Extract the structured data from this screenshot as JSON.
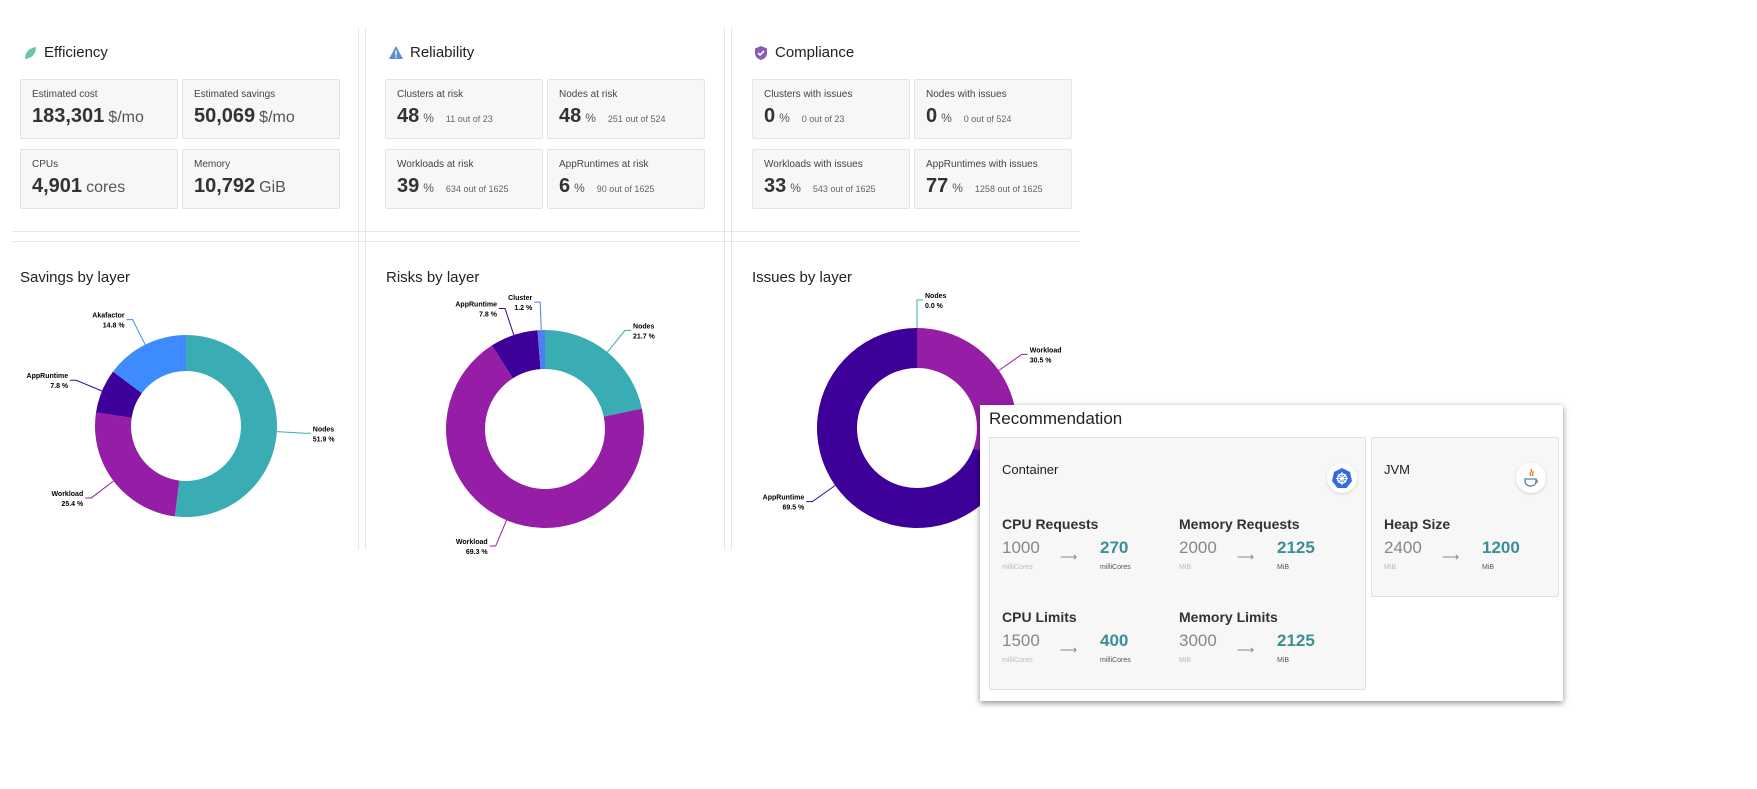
{
  "colors": {
    "nodes": "#3aacb3",
    "workload": "#961ea6",
    "appruntime": "#3d0099",
    "akafactor": "#3d8bff",
    "cluster": "#4e7ef5",
    "accent": "#3a8f97"
  },
  "efficiency": {
    "title": "Efficiency",
    "icon": "leaf-icon",
    "cards": [
      {
        "label": "Estimated cost",
        "value": "183,301",
        "unit": "$/mo"
      },
      {
        "label": "Estimated savings",
        "value": "50,069",
        "unit": "$/mo"
      },
      {
        "label": "CPUs",
        "value": "4,901",
        "unit": "cores"
      },
      {
        "label": "Memory",
        "value": "10,792",
        "unit": "GiB"
      }
    ]
  },
  "reliability": {
    "title": "Reliability",
    "icon": "warning-icon",
    "cards": [
      {
        "label": "Clusters at risk",
        "value": "48",
        "unit": "%",
        "sub": "11 out of 23"
      },
      {
        "label": "Nodes at risk",
        "value": "48",
        "unit": "%",
        "sub": "251 out of 524"
      },
      {
        "label": "Workloads at risk",
        "value": "39",
        "unit": "%",
        "sub": "634 out of 1625"
      },
      {
        "label": "AppRuntimes at risk",
        "value": "6",
        "unit": "%",
        "sub": "90 out of 1625"
      }
    ]
  },
  "compliance": {
    "title": "Compliance",
    "icon": "shield-check-icon",
    "cards": [
      {
        "label": "Clusters with issues",
        "value": "0",
        "unit": "%",
        "sub": "0 out of 23"
      },
      {
        "label": "Nodes with issues",
        "value": "0",
        "unit": "%",
        "sub": "0 out of 524"
      },
      {
        "label": "Workloads with issues",
        "value": "33",
        "unit": "%",
        "sub": "543 out of 1625"
      },
      {
        "label": "AppRuntimes with issues",
        "value": "77",
        "unit": "%",
        "sub": "1258 out of 1625"
      }
    ]
  },
  "chart_data": [
    {
      "type": "pie",
      "title": "Savings by layer",
      "donut": true,
      "slices": [
        {
          "label": "Nodes",
          "value": 51.9,
          "color": "#3aacb3"
        },
        {
          "label": "Workload",
          "value": 25.4,
          "color": "#961ea6"
        },
        {
          "label": "AppRuntime",
          "value": 7.8,
          "color": "#3d0099"
        },
        {
          "label": "Akafactor",
          "value": 14.8,
          "color": "#3d8bff"
        }
      ]
    },
    {
      "type": "pie",
      "title": "Risks by layer",
      "donut": true,
      "slices": [
        {
          "label": "Nodes",
          "value": 21.7,
          "color": "#3aacb3"
        },
        {
          "label": "Workload",
          "value": 69.3,
          "color": "#961ea6"
        },
        {
          "label": "AppRuntime",
          "value": 7.8,
          "color": "#3d0099"
        },
        {
          "label": "Cluster",
          "value": 1.2,
          "color": "#4e7ef5"
        }
      ]
    },
    {
      "type": "pie",
      "title": "Issues by layer",
      "donut": true,
      "slices": [
        {
          "label": "Nodes",
          "value": 0.0,
          "color": "#3aacb3"
        },
        {
          "label": "Workload",
          "value": 30.5,
          "color": "#961ea6"
        },
        {
          "label": "AppRuntime",
          "value": 69.5,
          "color": "#3d0099"
        }
      ]
    }
  ],
  "recommendation": {
    "title": "Recommendation",
    "container": {
      "title": "Container",
      "icon": "kubernetes-icon",
      "metrics": [
        {
          "label": "CPU Requests",
          "old": "1000",
          "old_unit": "milliCores",
          "new": "270",
          "new_unit": "milliCores"
        },
        {
          "label": "Memory Requests",
          "old": "2000",
          "old_unit": "MiB",
          "new": "2125",
          "new_unit": "MiB"
        },
        {
          "label": "CPU Limits",
          "old": "1500",
          "old_unit": "milliCores",
          "new": "400",
          "new_unit": "milliCores"
        },
        {
          "label": "Memory Limits",
          "old": "3000",
          "old_unit": "MiB",
          "new": "2125",
          "new_unit": "MiB"
        }
      ]
    },
    "jvm": {
      "title": "JVM",
      "icon": "java-icon",
      "metrics": [
        {
          "label": "Heap Size",
          "old": "2400",
          "old_unit": "MiB",
          "new": "1200",
          "new_unit": "MiB"
        }
      ]
    }
  }
}
